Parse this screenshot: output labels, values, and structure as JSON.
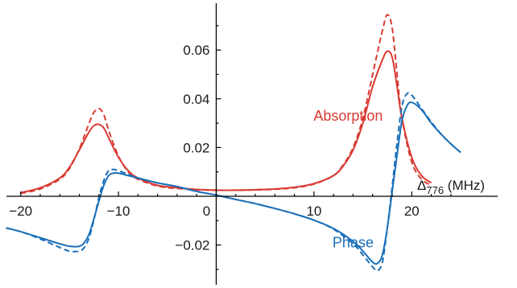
{
  "chart_data": {
    "type": "line",
    "title": "",
    "xlabel_main": "Δ",
    "xlabel_sub": "776",
    "xlabel_unit": " (MHz)",
    "ylabel": "",
    "xlim": [
      -21.5,
      26
    ],
    "ylim": [
      -0.035,
      0.078
    ],
    "x_ticks": [
      -20,
      -10,
      0,
      10,
      20
    ],
    "x_tick_labels": [
      "−20",
      "−10",
      "0",
      "10",
      "20"
    ],
    "y_ticks": [
      -0.02,
      0.02,
      0.04,
      0.06
    ],
    "y_tick_labels": [
      "−0.02",
      "0.02",
      "0.04",
      "0.06"
    ],
    "grid": false,
    "legend": "none",
    "series": [
      {
        "name": "Absorption",
        "color": "#d93a32",
        "dash": "solid",
        "x": [
          -20,
          -18,
          -16,
          -15,
          -14,
          -13,
          -12.5,
          -12,
          -11.5,
          -11,
          -10,
          -9,
          -8,
          -6,
          -4,
          -2,
          0,
          2,
          4,
          6,
          8,
          10,
          12,
          13,
          14,
          15,
          16,
          17,
          17.5,
          18,
          18.5,
          19,
          20,
          21,
          22
        ],
        "values": [
          0.0015,
          0.0035,
          0.0075,
          0.012,
          0.019,
          0.0265,
          0.029,
          0.0295,
          0.028,
          0.024,
          0.016,
          0.0105,
          0.0075,
          0.0045,
          0.0035,
          0.0028,
          0.0025,
          0.0025,
          0.0027,
          0.003,
          0.0037,
          0.0052,
          0.0085,
          0.0125,
          0.019,
          0.03,
          0.045,
          0.056,
          0.0595,
          0.057,
          0.045,
          0.032,
          0.016,
          0.0085,
          0.0055
        ]
      },
      {
        "name": "Absorption",
        "color": "#d93a32",
        "dash": "dashed",
        "x": [
          -20,
          -18,
          -16,
          -15,
          -14,
          -13,
          -12.5,
          -12,
          -11.5,
          -11,
          -10,
          -9,
          -8,
          -6,
          -4,
          -2,
          0,
          2,
          4,
          6,
          8,
          10,
          12,
          13,
          14,
          15,
          16,
          17,
          17.5,
          18,
          18.5,
          19,
          20,
          21,
          22
        ],
        "values": [
          0.0012,
          0.003,
          0.007,
          0.0115,
          0.0195,
          0.03,
          0.0345,
          0.036,
          0.0335,
          0.027,
          0.0165,
          0.01,
          0.007,
          0.0042,
          0.0032,
          0.0027,
          0.0025,
          0.0025,
          0.0026,
          0.0029,
          0.0035,
          0.005,
          0.0085,
          0.013,
          0.02,
          0.032,
          0.05,
          0.068,
          0.0745,
          0.069,
          0.05,
          0.032,
          0.014,
          0.007,
          0.0045
        ]
      },
      {
        "name": "Phase",
        "color": "#1a6fb8",
        "dash": "solid",
        "x": [
          -21.5,
          -20,
          -18,
          -16,
          -15,
          -14,
          -13.5,
          -13,
          -12.5,
          -12,
          -11.5,
          -11,
          -10.5,
          -10,
          -9,
          -8,
          -6,
          -4,
          -2,
          0,
          2,
          4,
          6,
          8,
          10,
          12,
          14,
          15,
          16,
          16.5,
          17,
          17.5,
          18,
          18.5,
          19,
          19.5,
          20,
          21,
          22,
          23,
          24,
          25
        ],
        "values": [
          -0.013,
          -0.0145,
          -0.017,
          -0.0195,
          -0.0205,
          -0.0205,
          -0.019,
          -0.0155,
          -0.009,
          -0.002,
          0.0045,
          0.0085,
          0.0095,
          0.0095,
          0.0085,
          0.0075,
          0.0055,
          0.004,
          0.002,
          0.0005,
          -0.0013,
          -0.003,
          -0.005,
          -0.0072,
          -0.0098,
          -0.0132,
          -0.0185,
          -0.0225,
          -0.027,
          -0.0275,
          -0.024,
          -0.013,
          0.002,
          0.017,
          0.031,
          0.037,
          0.0385,
          0.0355,
          0.03,
          0.0255,
          0.0215,
          0.018
        ]
      },
      {
        "name": "Phase",
        "color": "#1a6fb8",
        "dash": "dashed",
        "x": [
          -21.5,
          -20,
          -18,
          -16,
          -15,
          -14,
          -13.5,
          -13,
          -12.5,
          -12,
          -11.5,
          -11,
          -10.5,
          -10,
          -9,
          -8,
          -6,
          -4,
          -2,
          0,
          2,
          4,
          6,
          8,
          10,
          12,
          14,
          15,
          16,
          16.5,
          17,
          17.5,
          18,
          18.5,
          19,
          19.5,
          20,
          21,
          22,
          23,
          24,
          25
        ],
        "values": [
          -0.013,
          -0.0145,
          -0.0175,
          -0.021,
          -0.0225,
          -0.0225,
          -0.021,
          -0.017,
          -0.0095,
          -0.0005,
          0.0065,
          0.0105,
          0.011,
          0.0105,
          0.009,
          0.0075,
          0.0055,
          0.004,
          0.002,
          0.0005,
          -0.0013,
          -0.003,
          -0.005,
          -0.0072,
          -0.0098,
          -0.0135,
          -0.0195,
          -0.024,
          -0.029,
          -0.0305,
          -0.027,
          -0.013,
          0.004,
          0.022,
          0.037,
          0.042,
          0.0415,
          0.036,
          0.0305,
          0.0255,
          0.0215,
          0.018
        ]
      }
    ],
    "annotations": [
      {
        "text": "Absorption",
        "color": "#d93a32",
        "at": [
          13.5,
          0.031
        ]
      },
      {
        "text": "Phase",
        "color": "#1a6fb8",
        "at": [
          14,
          -0.021
        ]
      }
    ]
  }
}
